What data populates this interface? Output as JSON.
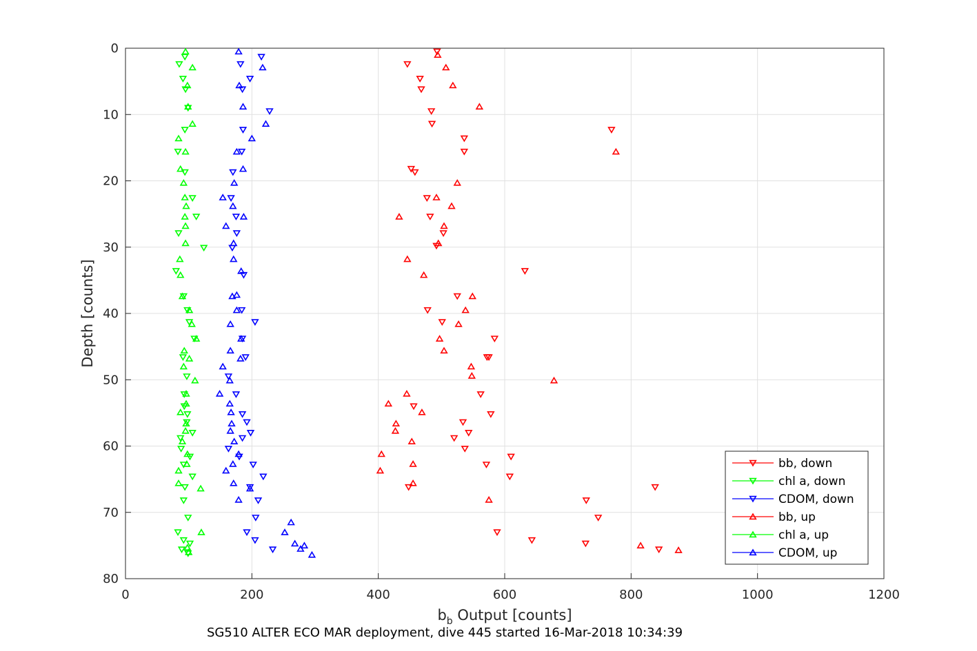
{
  "chart_data": {
    "type": "scatter",
    "xlabel_main": "b",
    "xlabel_sub": "b",
    "xlabel_rest": " Output [counts]",
    "ylabel": "Depth [counts]",
    "caption": "SG510 ALTER ECO MAR deployment, dive 445 started 16-Mar-2018 10:34:39",
    "xlim": [
      0,
      1200
    ],
    "ylim": [
      0,
      80
    ],
    "y_reversed": true,
    "grid": true,
    "legend_position": "bottom-right",
    "x_ticks": [
      "0",
      "200",
      "400",
      "600",
      "800",
      "1000",
      "1200"
    ],
    "y_ticks": [
      "0",
      "10",
      "20",
      "30",
      "40",
      "50",
      "60",
      "70",
      "80"
    ],
    "series": [
      {
        "name": "bb, down",
        "color": "#ff0000",
        "marker": "triangle-down",
        "points": [
          [
            493,
            0.5
          ],
          [
            446,
            2.4
          ],
          [
            466,
            4.6
          ],
          [
            468,
            6.2
          ],
          [
            484,
            9.5
          ],
          [
            485,
            11.4
          ],
          [
            536,
            13.6
          ],
          [
            536,
            15.6
          ],
          [
            452,
            18.2
          ],
          [
            458,
            18.7
          ],
          [
            477,
            22.6
          ],
          [
            482,
            25.4
          ],
          [
            503,
            27.9
          ],
          [
            492,
            29.8
          ],
          [
            632,
            33.6
          ],
          [
            525,
            37.4
          ],
          [
            478,
            39.5
          ],
          [
            501,
            41.3
          ],
          [
            584,
            43.8
          ],
          [
            572,
            46.6
          ],
          [
            575,
            46.6
          ],
          [
            562,
            52.2
          ],
          [
            456,
            54.0
          ],
          [
            578,
            55.2
          ],
          [
            534,
            56.4
          ],
          [
            543,
            58.0
          ],
          [
            520,
            58.8
          ],
          [
            537,
            60.4
          ],
          [
            610,
            61.6
          ],
          [
            571,
            62.8
          ],
          [
            608,
            64.6
          ],
          [
            838,
            66.2
          ],
          [
            448,
            66.2
          ],
          [
            729,
            68.2
          ],
          [
            748,
            70.8
          ],
          [
            588,
            73.0
          ],
          [
            643,
            74.2
          ],
          [
            728,
            74.7
          ],
          [
            844,
            75.6
          ],
          [
            769,
            12.3
          ]
        ]
      },
      {
        "name": "chl a, down",
        "color": "#00ff00",
        "marker": "triangle-down",
        "points": [
          [
            94,
            1.3
          ],
          [
            85,
            2.4
          ],
          [
            91,
            4.6
          ],
          [
            95,
            6.2
          ],
          [
            99,
            9.0
          ],
          [
            94,
            12.3
          ],
          [
            83,
            15.6
          ],
          [
            94,
            18.7
          ],
          [
            106,
            22.6
          ],
          [
            112,
            25.4
          ],
          [
            84,
            27.9
          ],
          [
            124,
            30.1
          ],
          [
            80,
            33.6
          ],
          [
            92,
            37.4
          ],
          [
            98,
            39.5
          ],
          [
            101,
            41.3
          ],
          [
            109,
            43.8
          ],
          [
            91,
            46.6
          ],
          [
            97,
            49.5
          ],
          [
            93,
            52.2
          ],
          [
            93,
            54.0
          ],
          [
            98,
            55.2
          ],
          [
            97,
            56.4
          ],
          [
            106,
            58.0
          ],
          [
            87,
            58.8
          ],
          [
            88,
            60.4
          ],
          [
            102,
            61.6
          ],
          [
            92,
            62.8
          ],
          [
            106,
            64.6
          ],
          [
            94,
            66.2
          ],
          [
            92,
            68.2
          ],
          [
            99,
            70.8
          ],
          [
            83,
            73.0
          ],
          [
            92,
            74.2
          ],
          [
            102,
            74.7
          ],
          [
            89,
            75.6
          ],
          [
            99,
            76.2
          ]
        ]
      },
      {
        "name": "CDOM, down",
        "color": "#0000ff",
        "marker": "triangle-down",
        "points": [
          [
            182,
            2.4
          ],
          [
            197,
            4.6
          ],
          [
            185,
            6.2
          ],
          [
            228,
            9.5
          ],
          [
            186,
            12.3
          ],
          [
            184,
            15.6
          ],
          [
            170,
            18.7
          ],
          [
            167,
            22.6
          ],
          [
            175,
            25.4
          ],
          [
            176,
            27.9
          ],
          [
            169,
            30.1
          ],
          [
            187,
            34.2
          ],
          [
            184,
            39.5
          ],
          [
            205,
            41.3
          ],
          [
            185,
            43.8
          ],
          [
            190,
            46.6
          ],
          [
            163,
            49.5
          ],
          [
            175,
            52.2
          ],
          [
            185,
            55.2
          ],
          [
            192,
            56.4
          ],
          [
            198,
            58.0
          ],
          [
            185,
            58.8
          ],
          [
            163,
            60.4
          ],
          [
            180,
            61.6
          ],
          [
            202,
            62.8
          ],
          [
            218,
            64.6
          ],
          [
            197,
            66.2
          ],
          [
            210,
            68.2
          ],
          [
            206,
            70.8
          ],
          [
            192,
            73.0
          ],
          [
            205,
            74.2
          ],
          [
            233,
            75.6
          ],
          [
            215,
            1.3
          ]
        ]
      },
      {
        "name": "bb, up",
        "color": "#ff0000",
        "marker": "triangle-up",
        "points": [
          [
            494,
            1.0
          ],
          [
            507,
            2.9
          ],
          [
            518,
            5.6
          ],
          [
            560,
            8.8
          ],
          [
            776,
            15.6
          ],
          [
            525,
            20.3
          ],
          [
            492,
            22.5
          ],
          [
            516,
            23.8
          ],
          [
            433,
            25.4
          ],
          [
            504,
            26.8
          ],
          [
            495,
            29.4
          ],
          [
            446,
            31.8
          ],
          [
            472,
            34.2
          ],
          [
            549,
            37.4
          ],
          [
            538,
            39.5
          ],
          [
            527,
            41.6
          ],
          [
            497,
            43.8
          ],
          [
            504,
            45.6
          ],
          [
            547,
            48.0
          ],
          [
            548,
            49.4
          ],
          [
            678,
            50.1
          ],
          [
            445,
            52.1
          ],
          [
            416,
            53.6
          ],
          [
            469,
            54.9
          ],
          [
            428,
            56.6
          ],
          [
            427,
            57.7
          ],
          [
            453,
            59.3
          ],
          [
            405,
            61.2
          ],
          [
            455,
            62.7
          ],
          [
            403,
            63.7
          ],
          [
            455,
            65.6
          ],
          [
            575,
            68.1
          ],
          [
            815,
            75.0
          ],
          [
            875,
            75.7
          ]
        ]
      },
      {
        "name": "chl a, up",
        "color": "#00ff00",
        "marker": "triangle-up",
        "points": [
          [
            95,
            0.5
          ],
          [
            106,
            2.9
          ],
          [
            98,
            5.6
          ],
          [
            99,
            8.8
          ],
          [
            106,
            11.4
          ],
          [
            84,
            13.6
          ],
          [
            95,
            15.6
          ],
          [
            87,
            18.2
          ],
          [
            92,
            20.3
          ],
          [
            94,
            22.5
          ],
          [
            96,
            23.8
          ],
          [
            94,
            25.4
          ],
          [
            95,
            26.8
          ],
          [
            95,
            29.4
          ],
          [
            86,
            31.8
          ],
          [
            87,
            34.2
          ],
          [
            90,
            37.4
          ],
          [
            101,
            39.5
          ],
          [
            105,
            41.6
          ],
          [
            112,
            43.8
          ],
          [
            93,
            45.6
          ],
          [
            101,
            46.8
          ],
          [
            92,
            48.0
          ],
          [
            110,
            50.1
          ],
          [
            96,
            52.1
          ],
          [
            96,
            53.6
          ],
          [
            87,
            54.9
          ],
          [
            96,
            56.6
          ],
          [
            95,
            57.7
          ],
          [
            90,
            59.3
          ],
          [
            98,
            61.2
          ],
          [
            97,
            62.7
          ],
          [
            84,
            63.7
          ],
          [
            119,
            66.4
          ],
          [
            84,
            65.6
          ],
          [
            120,
            73.0
          ],
          [
            98,
            75.3
          ],
          [
            100,
            76.0
          ]
        ]
      },
      {
        "name": "CDOM, up",
        "color": "#0000ff",
        "marker": "triangle-up",
        "points": [
          [
            179,
            0.5
          ],
          [
            217,
            2.9
          ],
          [
            180,
            5.6
          ],
          [
            186,
            8.8
          ],
          [
            222,
            11.4
          ],
          [
            200,
            13.6
          ],
          [
            176,
            15.6
          ],
          [
            186,
            18.2
          ],
          [
            172,
            20.3
          ],
          [
            154,
            22.5
          ],
          [
            170,
            23.8
          ],
          [
            187,
            25.4
          ],
          [
            159,
            26.8
          ],
          [
            171,
            29.4
          ],
          [
            171,
            31.8
          ],
          [
            183,
            33.6
          ],
          [
            169,
            37.4
          ],
          [
            176,
            37.2
          ],
          [
            176,
            39.5
          ],
          [
            166,
            41.6
          ],
          [
            183,
            43.8
          ],
          [
            166,
            45.6
          ],
          [
            182,
            46.8
          ],
          [
            154,
            48.0
          ],
          [
            165,
            50.1
          ],
          [
            149,
            52.1
          ],
          [
            165,
            53.6
          ],
          [
            167,
            54.9
          ],
          [
            168,
            56.6
          ],
          [
            166,
            57.7
          ],
          [
            172,
            59.3
          ],
          [
            179,
            61.2
          ],
          [
            170,
            62.7
          ],
          [
            159,
            63.7
          ],
          [
            171,
            65.6
          ],
          [
            197,
            66.4
          ],
          [
            179,
            68.1
          ],
          [
            262,
            71.5
          ],
          [
            252,
            73.0
          ],
          [
            268,
            74.7
          ],
          [
            277,
            75.5
          ],
          [
            283,
            75.0
          ],
          [
            295,
            76.4
          ]
        ]
      }
    ]
  }
}
